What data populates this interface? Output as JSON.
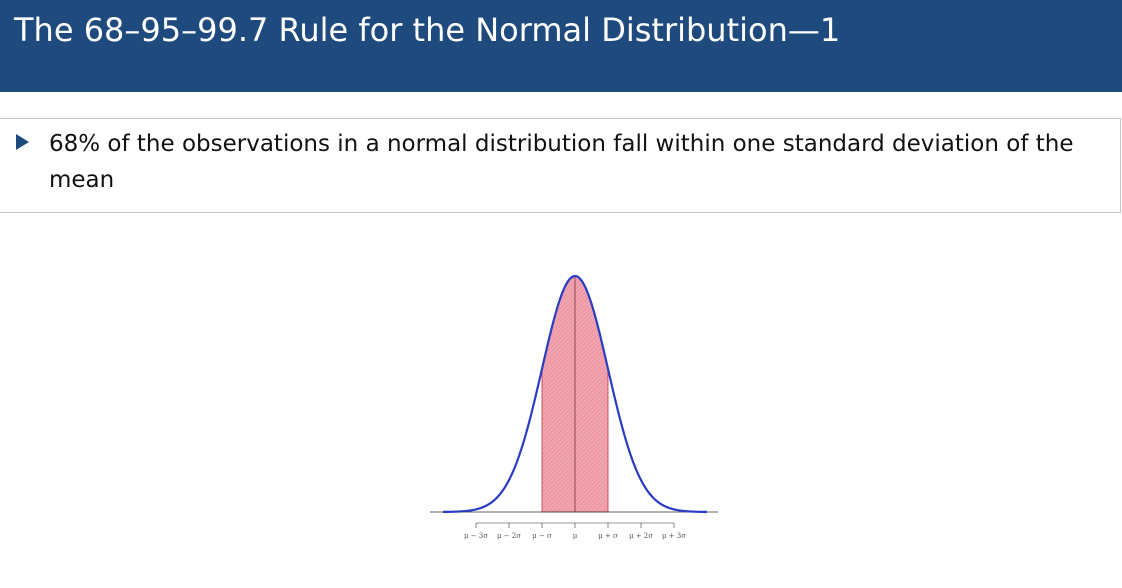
{
  "slide": {
    "title": "The 68–95–99.7 Rule for the Normal Distribution—1",
    "bullets": [
      "68% of the observations in a normal distribution fall within one standard deviation of the mean"
    ]
  },
  "chart_data": {
    "type": "area",
    "title": "",
    "xlabel": "",
    "ylabel": "",
    "distribution": "normal",
    "x_range_sd": [
      -4,
      4
    ],
    "shaded_range_sd": [
      -1,
      1
    ],
    "shaded_proportion_percent": 68,
    "tick_values_sd": [
      -3,
      -2,
      -1,
      0,
      1,
      2,
      3
    ],
    "tick_labels": [
      "μ − 3σ",
      "μ − 2σ",
      "μ − σ",
      "μ",
      "μ + σ",
      "μ + 2σ",
      "μ + 3σ"
    ],
    "colors": {
      "curve": "#2a3cc4",
      "shade": "#f2a5b0",
      "shade_edge": "#c03040",
      "axis": "#333333"
    },
    "grid": false,
    "legend": "none"
  }
}
